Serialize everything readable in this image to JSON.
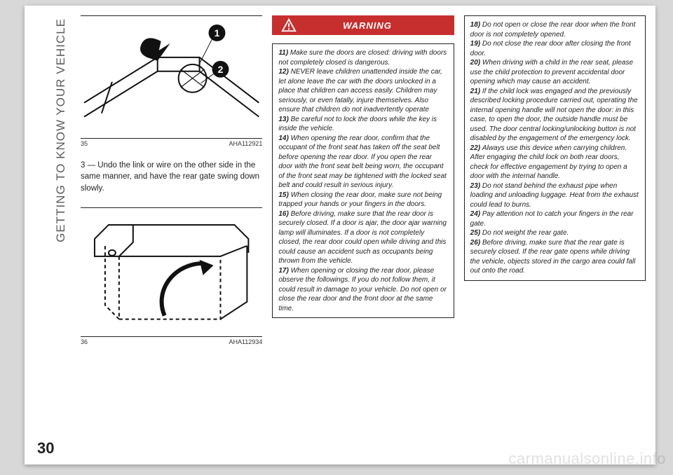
{
  "section_title": "GETTING TO KNOW YOUR VEHICLE",
  "page_number": "30",
  "watermark": "carmanualsonline.info",
  "figure35": {
    "number": "35",
    "code": "AHA112921",
    "callouts": [
      "1",
      "2"
    ]
  },
  "body_paragraph": "3 — Undo the link or wire on the other side in the same manner, and have the rear gate swing down slowly.",
  "figure36": {
    "number": "36",
    "code": "AHA112934"
  },
  "warning_label": "WARNING",
  "warnings_col2": [
    {
      "n": "11)",
      "t": "Make sure the doors are closed: driving with doors not completely closed is dangerous."
    },
    {
      "n": "12)",
      "t": "NEVER leave children unattended inside the car, let alone leave the car with the doors unlocked in a place that children can access easily. Children may seriously, or even fatally, injure themselves. Also ensure that children do not inadvertently operate"
    },
    {
      "n": "13)",
      "t": "Be careful not to lock the doors while the key is inside the vehicle."
    },
    {
      "n": "14)",
      "t": "When opening the rear door, confirm that the occupant of the front seat has taken off the seat belt before opening the rear door. If you open the rear door with the front seat belt being worn, the occupant of the front seat may be tightened with the locked seat belt and could result in serious injury."
    },
    {
      "n": "15)",
      "t": "When closing the rear door, make sure not being trapped your hands or your fingers in the doors."
    },
    {
      "n": "16)",
      "t": "Before driving, make sure that the rear door is securely closed. If a door is ajar, the door ajar warning lamp will illuminates. If a door is not completely closed, the rear door could open while driving and this could cause an accident such as occupants being thrown from the vehicle."
    },
    {
      "n": "17)",
      "t": "When opening or closing the rear door, please observe the followings. If you do not follow them, it could result in damage to your vehicle. Do not open or close the rear door and the front door at the same time."
    }
  ],
  "warnings_col3": [
    {
      "n": "18)",
      "t": "Do not open or close the rear door when the front door is not completely opened."
    },
    {
      "n": "19)",
      "t": "Do not close the rear door after closing the front door."
    },
    {
      "n": "20)",
      "t": "When driving with a child in the rear seat, please use the child protection to prevent accidental door opening which may cause an accident."
    },
    {
      "n": "21)",
      "t": "If the child lock was engaged and the previously described locking procedure carried out, operating the internal opening handle will not open the door: in this case, to open the door, the outside handle must be used. The door central locking/unlocking button is not disabled by the engagement of the emergency lock."
    },
    {
      "n": "22)",
      "t": "Always use this device when carrying children. After engaging the child lock on both rear doors, check for effective engagement by trying to open a door with the internal handle."
    },
    {
      "n": "23)",
      "t": "Do not stand behind the exhaust pipe when loading and unloading luggage. Heat from the exhaust could lead to burns."
    },
    {
      "n": "24)",
      "t": "Pay attention not to catch your fingers in the rear gate."
    },
    {
      "n": "25)",
      "t": "Do not weight the rear gate."
    },
    {
      "n": "26)",
      "t": "Before driving, make sure that the rear gate is securely closed. If the rear gate opens while driving the vehicle, objects stored in the cargo area could fall out onto the road."
    }
  ]
}
